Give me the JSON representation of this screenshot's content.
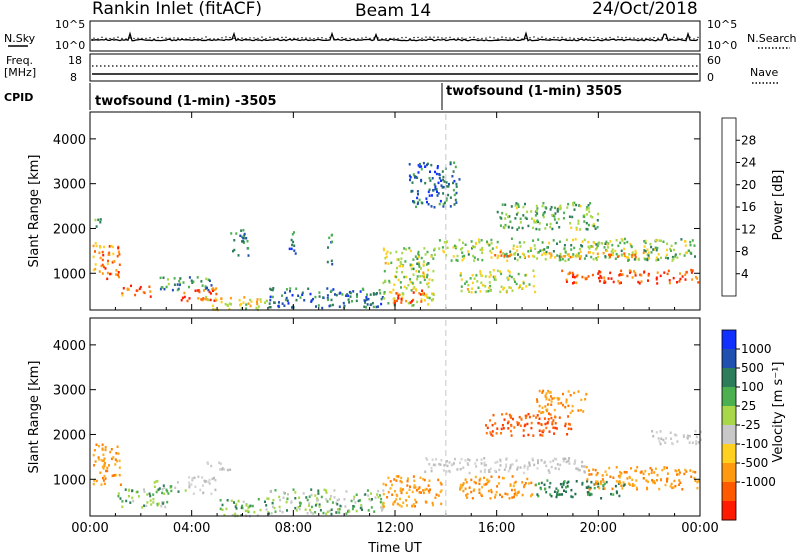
{
  "header": {
    "station": "Rankin Inlet (fitACF)",
    "beam": "Beam 14",
    "date": "24/Oct/2018"
  },
  "noise_panel": {
    "left_label": "N.Sky",
    "left_ticks": [
      "10^5",
      "10^0"
    ],
    "right_ticks": [
      "10^5",
      "10^0"
    ],
    "right_label": "N.Search"
  },
  "freq_panel": {
    "left_label_1": "Freq.",
    "left_label_2": "[MHz]",
    "left_ticks": [
      "18",
      "8"
    ],
    "right_ticks": [
      "60",
      "0"
    ],
    "right_label": "Nave"
  },
  "cpid": {
    "label": "CPID",
    "programs": [
      {
        "name": "twofsound (1-min) -3505",
        "start_hour": 0
      },
      {
        "name": "twofsound (1-min) 3505",
        "start_hour": 14
      }
    ]
  },
  "chart_data": [
    {
      "type": "heatmap",
      "panel": "power",
      "ylabel": "Slant Range [km]",
      "xlabel": "",
      "x_ticks": [
        "00:00",
        "04:00",
        "08:00",
        "12:00",
        "16:00",
        "20:00",
        "00:00"
      ],
      "x_hours": [
        0,
        4,
        8,
        12,
        16,
        20,
        24
      ],
      "y_ticks": [
        "1000",
        "2000",
        "3000",
        "4000"
      ],
      "y_values": [
        1000,
        2000,
        3000,
        4000
      ],
      "xlim": [
        0,
        24
      ],
      "ylim": [
        180,
        4600
      ],
      "colorbar": {
        "label": "Power [dB]",
        "ticks": [
          "4",
          "8",
          "12",
          "16",
          "20",
          "24",
          "28"
        ],
        "tick_values": [
          4,
          8,
          12,
          16,
          20,
          24,
          28
        ],
        "range": [
          0,
          32
        ],
        "colors": [
          "#1030ff",
          "#2050b0",
          "#2e7d5a",
          "#4caf50",
          "#a8d84a",
          "#ffd020",
          "#ff9a10",
          "#ff5a00",
          "#ff1a00"
        ]
      },
      "regions": [
        {
          "t": [
            0.1,
            1.2
          ],
          "r": [
            900,
            1700
          ],
          "level": 0.75
        },
        {
          "t": [
            0.1,
            0.4
          ],
          "r": [
            2000,
            2300
          ],
          "level": 0.35
        },
        {
          "t": [
            1.2,
            2.4
          ],
          "r": [
            500,
            750
          ],
          "level": 0.8
        },
        {
          "t": [
            2.5,
            4.8
          ],
          "r": [
            650,
            950
          ],
          "level": 0.3
        },
        {
          "t": [
            3.5,
            5.0
          ],
          "r": [
            400,
            700
          ],
          "level": 0.85
        },
        {
          "t": [
            4.5,
            7.0
          ],
          "r": [
            200,
            500
          ],
          "level": 0.6
        },
        {
          "t": [
            5.5,
            6.2
          ],
          "r": [
            1400,
            2000
          ],
          "level": 0.3
        },
        {
          "t": [
            7.8,
            8.1
          ],
          "r": [
            1400,
            2000
          ],
          "level": 0.25
        },
        {
          "t": [
            7.0,
            11.5
          ],
          "r": [
            250,
            700
          ],
          "level": 0.25
        },
        {
          "t": [
            9.3,
            9.5
          ],
          "r": [
            1200,
            2000
          ],
          "level": 0.3
        },
        {
          "t": [
            11.5,
            13.5
          ],
          "r": [
            300,
            1600
          ],
          "level": 0.5
        },
        {
          "t": [
            11.8,
            13.2
          ],
          "r": [
            350,
            650
          ],
          "level": 0.9
        },
        {
          "t": [
            13.5,
            23.8
          ],
          "r": [
            1300,
            1800
          ],
          "level": 0.45
        },
        {
          "t": [
            15.5,
            22.0
          ],
          "r": [
            1350,
            1500
          ],
          "level": 0.7
        },
        {
          "t": [
            18.5,
            24.0
          ],
          "r": [
            800,
            1100
          ],
          "level": 0.88
        },
        {
          "t": [
            14.5,
            17.5
          ],
          "r": [
            600,
            1100
          ],
          "level": 0.5
        },
        {
          "t": [
            16.0,
            20.0
          ],
          "r": [
            2000,
            2600
          ],
          "level": 0.4
        },
        {
          "t": [
            12.5,
            14.5
          ],
          "r": [
            2500,
            3500
          ],
          "level": 0.2
        }
      ]
    },
    {
      "type": "heatmap",
      "panel": "velocity",
      "ylabel": "Slant Range [km]",
      "xlabel": "Time UT",
      "x_ticks": [
        "00:00",
        "04:00",
        "08:00",
        "12:00",
        "16:00",
        "20:00",
        "00:00"
      ],
      "x_hours": [
        0,
        4,
        8,
        12,
        16,
        20,
        24
      ],
      "y_ticks": [
        "1000",
        "2000",
        "3000",
        "4000"
      ],
      "y_values": [
        1000,
        2000,
        3000,
        4000
      ],
      "xlim": [
        0,
        24
      ],
      "ylim": [
        180,
        4600
      ],
      "colorbar": {
        "label": "Velocity [m s⁻¹]",
        "ticks": [
          "1000",
          "500",
          "100",
          "25",
          "-25",
          "-100",
          "-500",
          "-1000"
        ],
        "colors": [
          "#1030ff",
          "#2050b0",
          "#2e7d5a",
          "#4caf50",
          "#a8d84a",
          "#c8c8c8",
          "#ffd020",
          "#ff9a10",
          "#ff5a00",
          "#ff1a00"
        ]
      },
      "regions": [
        {
          "t": [
            0.1,
            1.2
          ],
          "r": [
            900,
            1800
          ],
          "vel": "orange"
        },
        {
          "t": [
            1.0,
            3.0
          ],
          "r": [
            400,
            800
          ],
          "vel": "green"
        },
        {
          "t": [
            2.5,
            3.8
          ],
          "r": [
            700,
            1000
          ],
          "vel": "green"
        },
        {
          "t": [
            3.8,
            5.0
          ],
          "r": [
            700,
            1100
          ],
          "vel": "gray"
        },
        {
          "t": [
            4.5,
            5.5
          ],
          "r": [
            1200,
            1400
          ],
          "vel": "gray"
        },
        {
          "t": [
            5.0,
            7.0
          ],
          "r": [
            200,
            600
          ],
          "vel": "green"
        },
        {
          "t": [
            7.0,
            11.5
          ],
          "r": [
            250,
            800
          ],
          "vel": "green"
        },
        {
          "t": [
            11.5,
            13.8
          ],
          "r": [
            400,
            1100
          ],
          "vel": "orange"
        },
        {
          "t": [
            13.0,
            19.5
          ],
          "r": [
            1150,
            1500
          ],
          "vel": "gray"
        },
        {
          "t": [
            14.5,
            17.5
          ],
          "r": [
            600,
            1100
          ],
          "vel": "orange"
        },
        {
          "t": [
            17.5,
            21.0
          ],
          "r": [
            600,
            1000
          ],
          "vel": "darkgreen"
        },
        {
          "t": [
            19.5,
            24.0
          ],
          "r": [
            800,
            1300
          ],
          "vel": "orange"
        },
        {
          "t": [
            15.5,
            19.0
          ],
          "r": [
            2000,
            2500
          ],
          "vel": "orangered"
        },
        {
          "t": [
            17.5,
            19.5
          ],
          "r": [
            2500,
            3000
          ],
          "vel": "orange"
        },
        {
          "t": [
            22.0,
            24.0
          ],
          "r": [
            1800,
            2100
          ],
          "vel": "gray"
        }
      ]
    }
  ]
}
